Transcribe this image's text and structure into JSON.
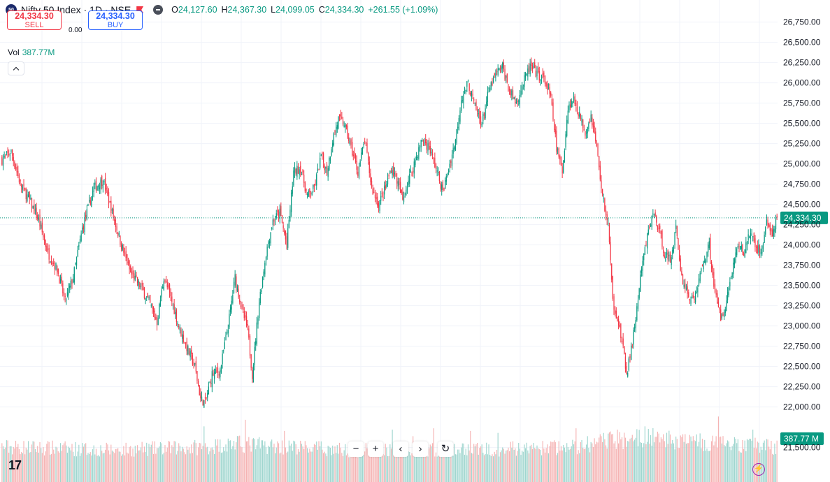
{
  "header": {
    "symbol_badge": "50",
    "title": "Nifty 50 Index · 1D · NSE",
    "ohlc": {
      "o_label": "O",
      "o": "24,127.60",
      "h_label": "H",
      "h": "24,367.30",
      "l_label": "L",
      "l": "24,099.05",
      "c_label": "C",
      "c": "24,334.30",
      "change": "+261.55 (+1.09%)"
    }
  },
  "trade": {
    "sell_price": "24,334.30",
    "sell_label": "SELL",
    "spread": "0.00",
    "buy_price": "24,334.30",
    "buy_label": "BUY"
  },
  "volume": {
    "label": "Vol",
    "value": "387.77M",
    "axis_label": "387.77 M"
  },
  "navigation": {
    "zoom_out": "−",
    "zoom_in": "+",
    "scroll_left": "‹",
    "scroll_right": "›",
    "reset": "↻"
  },
  "logo": "17",
  "colors": {
    "up": "#089981",
    "down": "#f23645",
    "up_volume": "#9fd6cf",
    "down_volume": "#f5b3b3",
    "grid": "#f0f3fa",
    "accent": "#2962ff"
  },
  "chart_data": {
    "type": "candlestick",
    "title": "Nifty 50 Index · 1D · NSE",
    "ylim": [
      21350,
      26850
    ],
    "y_ticks": [
      21500,
      22000,
      22250,
      22500,
      22750,
      23000,
      23250,
      23500,
      23750,
      24000,
      24250,
      24500,
      24750,
      25000,
      25250,
      25500,
      25750,
      26000,
      26250,
      26500,
      26750
    ],
    "y_tick_labels": [
      "21,500.00",
      "22,000.00",
      "22,250.00",
      "22,500.00",
      "22,750.00",
      "23,000.00",
      "23,250.00",
      "23,500.00",
      "23,750.00",
      "24,000.00",
      "24,250.00",
      "24,500.00",
      "24,750.00",
      "25,000.00",
      "25,250.00",
      "25,500.00",
      "25,750.00",
      "26,000.00",
      "26,250.00",
      "26,500.00",
      "26,750.00"
    ],
    "last_price": 24334.3,
    "last_price_label": "24,334.30",
    "close_path": [
      [
        0,
        25050
      ],
      [
        8,
        25150
      ],
      [
        16,
        24750
      ],
      [
        24,
        24550
      ],
      [
        32,
        24300
      ],
      [
        40,
        23900
      ],
      [
        48,
        23700
      ],
      [
        55,
        23300
      ],
      [
        62,
        23600
      ],
      [
        70,
        24200
      ],
      [
        80,
        24700
      ],
      [
        88,
        24800
      ],
      [
        96,
        24400
      ],
      [
        104,
        24000
      ],
      [
        112,
        23650
      ],
      [
        120,
        23500
      ],
      [
        128,
        23300
      ],
      [
        135,
        23050
      ],
      [
        141,
        23600
      ],
      [
        148,
        23300
      ],
      [
        155,
        22950
      ],
      [
        162,
        22700
      ],
      [
        168,
        22500
      ],
      [
        173,
        22100
      ],
      [
        177,
        22050
      ],
      [
        183,
        22400
      ],
      [
        190,
        22450
      ],
      [
        197,
        23000
      ],
      [
        203,
        23600
      ],
      [
        209,
        23200
      ],
      [
        214,
        22950
      ],
      [
        218,
        22400
      ],
      [
        224,
        23300
      ],
      [
        230,
        23900
      ],
      [
        236,
        24300
      ],
      [
        242,
        24400
      ],
      [
        248,
        24000
      ],
      [
        254,
        24900
      ],
      [
        260,
        24950
      ],
      [
        266,
        24600
      ],
      [
        272,
        24700
      ],
      [
        278,
        25100
      ],
      [
        283,
        24900
      ],
      [
        288,
        25300
      ],
      [
        293,
        25550
      ],
      [
        298,
        25500
      ],
      [
        304,
        25200
      ],
      [
        310,
        24900
      ],
      [
        316,
        25300
      ],
      [
        322,
        24700
      ],
      [
        328,
        24500
      ],
      [
        334,
        24700
      ],
      [
        339,
        24950
      ],
      [
        344,
        24800
      ],
      [
        349,
        24550
      ],
      [
        354,
        24800
      ],
      [
        360,
        25050
      ],
      [
        366,
        25300
      ],
      [
        372,
        25200
      ],
      [
        378,
        24950
      ],
      [
        384,
        24650
      ],
      [
        390,
        25000
      ],
      [
        395,
        25300
      ],
      [
        400,
        25800
      ],
      [
        406,
        26000
      ],
      [
        412,
        25700
      ],
      [
        418,
        25500
      ],
      [
        424,
        25900
      ],
      [
        430,
        26100
      ],
      [
        436,
        26200
      ],
      [
        442,
        25900
      ],
      [
        448,
        25750
      ],
      [
        454,
        26000
      ],
      [
        460,
        26200
      ],
      [
        466,
        26100
      ],
      [
        472,
        26050
      ],
      [
        478,
        25800
      ],
      [
        483,
        25200
      ],
      [
        488,
        24900
      ],
      [
        493,
        25700
      ],
      [
        498,
        25800
      ],
      [
        503,
        25600
      ],
      [
        508,
        25400
      ],
      [
        513,
        25600
      ],
      [
        518,
        25200
      ],
      [
        523,
        24600
      ],
      [
        528,
        24250
      ],
      [
        532,
        23300
      ],
      [
        536,
        23100
      ],
      [
        540,
        22800
      ],
      [
        544,
        22400
      ],
      [
        548,
        22700
      ],
      [
        552,
        23100
      ],
      [
        557,
        23700
      ],
      [
        562,
        24100
      ],
      [
        567,
        24400
      ],
      [
        572,
        24200
      ],
      [
        577,
        23900
      ],
      [
        582,
        23800
      ],
      [
        587,
        24200
      ],
      [
        592,
        23600
      ],
      [
        597,
        23400
      ],
      [
        602,
        23300
      ],
      [
        606,
        23500
      ],
      [
        611,
        23800
      ],
      [
        616,
        24000
      ],
      [
        621,
        23400
      ],
      [
        626,
        23100
      ],
      [
        631,
        23300
      ],
      [
        636,
        23700
      ],
      [
        641,
        24000
      ],
      [
        646,
        23900
      ],
      [
        651,
        24150
      ],
      [
        656,
        24000
      ],
      [
        661,
        23900
      ],
      [
        666,
        24300
      ],
      [
        671,
        24100
      ],
      [
        675,
        24334
      ]
    ],
    "volume_path": [
      [
        0,
        0.55
      ],
      [
        100,
        0.5
      ],
      [
        180,
        0.55
      ],
      [
        200,
        0.6
      ],
      [
        300,
        0.5
      ],
      [
        450,
        0.52
      ],
      [
        500,
        0.55
      ],
      [
        530,
        0.65
      ],
      [
        560,
        0.7
      ],
      [
        620,
        0.6
      ],
      [
        676,
        0.55
      ]
    ],
    "volume_spikes": [
      [
        176,
        0.85
      ],
      [
        212,
        0.95
      ],
      [
        246,
        0.78
      ],
      [
        340,
        0.8
      ],
      [
        358,
        0.7
      ],
      [
        376,
        0.82
      ],
      [
        408,
        0.78
      ],
      [
        432,
        0.75
      ],
      [
        500,
        0.82
      ],
      [
        536,
        0.8
      ],
      [
        560,
        0.85
      ],
      [
        624,
        1.0
      ],
      [
        654,
        0.8
      ]
    ],
    "volume_label": "387.77 M"
  }
}
